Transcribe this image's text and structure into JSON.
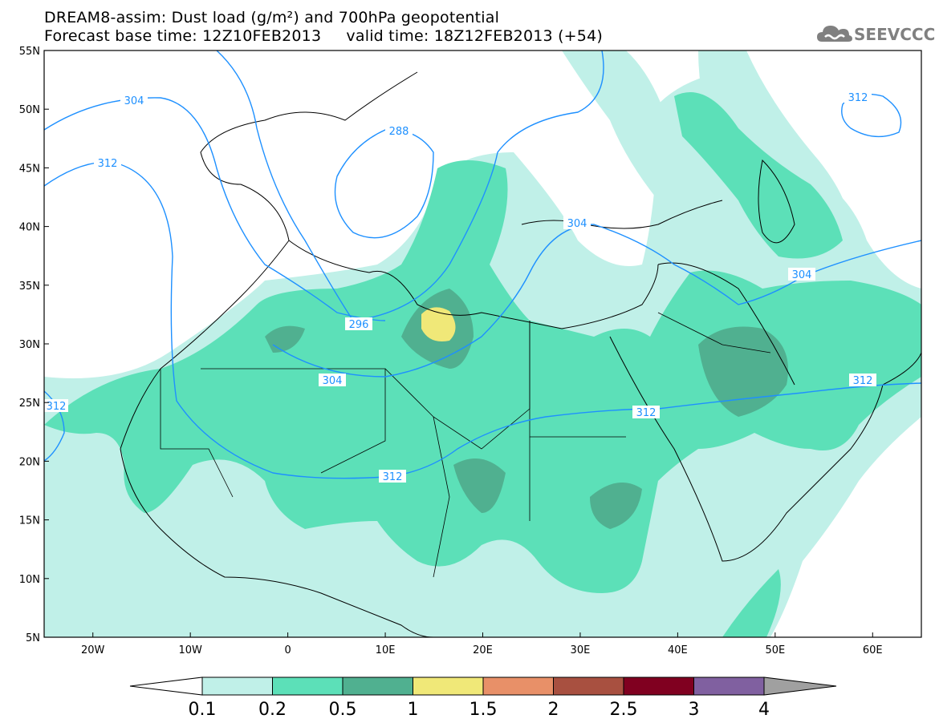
{
  "header": {
    "title_line1": "DREAM8-assim: Dust load (g/m²) and 700hPa geopotential",
    "title_line2": "Forecast base time: 12Z10FEB2013     valid time: 18Z12FEB2013 (+54)",
    "logo_text": "SEEVCCC"
  },
  "map": {
    "lon_range": [
      -25,
      65
    ],
    "lat_range": [
      5,
      55
    ],
    "lat_labels": [
      "55N",
      "50N",
      "45N",
      "40N",
      "35N",
      "30N",
      "25N",
      "20N",
      "15N",
      "10N",
      "5N"
    ],
    "lon_labels": [
      "20W",
      "10W",
      "0",
      "10E",
      "20E",
      "30E",
      "40E",
      "50E",
      "60E"
    ],
    "contour_labels": [
      "304",
      "312",
      "288",
      "304",
      "304",
      "312",
      "296",
      "304",
      "312",
      "312",
      "312",
      "312"
    ],
    "contour_color": "#1e90ff"
  },
  "colorbar": {
    "labels": [
      "0.1",
      "0.2",
      "0.5",
      "1",
      "1.5",
      "2",
      "2.5",
      "3",
      "4"
    ],
    "colors": [
      "#c0f0e8",
      "#5ce0b8",
      "#50b090",
      "#f0e878",
      "#e89068",
      "#a85040",
      "#800020",
      "#8060a0",
      "#a0a0a0"
    ],
    "units": "g/m²"
  }
}
